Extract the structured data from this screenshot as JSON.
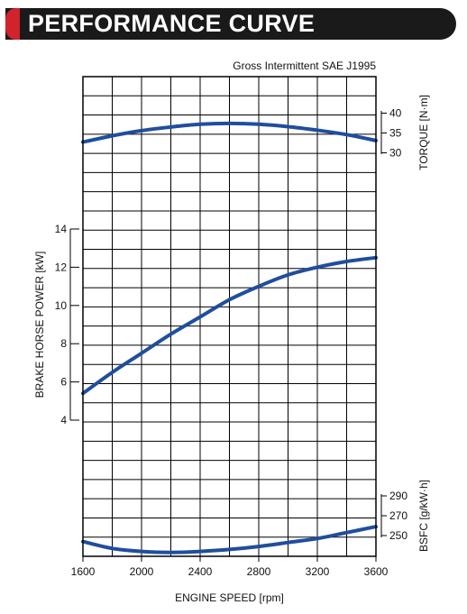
{
  "header": {
    "title": "PERFORMANCE CURVE"
  },
  "chart_data": {
    "type": "line",
    "subtitle": "Gross Intermittent SAE J1995",
    "xlabel": "ENGINE SPEED [rpm]",
    "xlim": [
      1600,
      3600
    ],
    "xticks": [
      "1600",
      "2000",
      "2400",
      "2800",
      "3200",
      "3600"
    ],
    "grid": true,
    "line_color": "#1f4e9e",
    "series": [
      {
        "axis_label": "TORQUE [N·m]",
        "axis_side": "right",
        "ticks": [
          "40",
          "35",
          "30"
        ],
        "x": [
          1600,
          1800,
          2000,
          2200,
          2400,
          2600,
          2800,
          3000,
          3200,
          3400,
          3600
        ],
        "values": [
          32.7,
          34.3,
          35.6,
          36.5,
          37.2,
          37.4,
          37.2,
          36.6,
          35.7,
          34.6,
          33.1
        ]
      },
      {
        "axis_label": "BRAKE HORSE POWER [kW]",
        "axis_side": "left",
        "ticks": [
          "14",
          "12",
          "10",
          "8",
          "6",
          "4"
        ],
        "x": [
          1600,
          1800,
          2000,
          2200,
          2400,
          2600,
          2800,
          3000,
          3200,
          3400,
          3600
        ],
        "values": [
          5.4,
          6.5,
          7.5,
          8.5,
          9.4,
          10.3,
          11.0,
          11.6,
          12.0,
          12.3,
          12.5
        ]
      },
      {
        "axis_label": "BSFC [g/kW·h]",
        "axis_side": "right",
        "ticks": [
          "290",
          "270",
          "250"
        ],
        "x": [
          1600,
          1800,
          2000,
          2200,
          2400,
          2600,
          2800,
          3000,
          3200,
          3400,
          3600
        ],
        "values": [
          244,
          237,
          234,
          233,
          234,
          236,
          239,
          243,
          247,
          253,
          259
        ]
      }
    ]
  }
}
